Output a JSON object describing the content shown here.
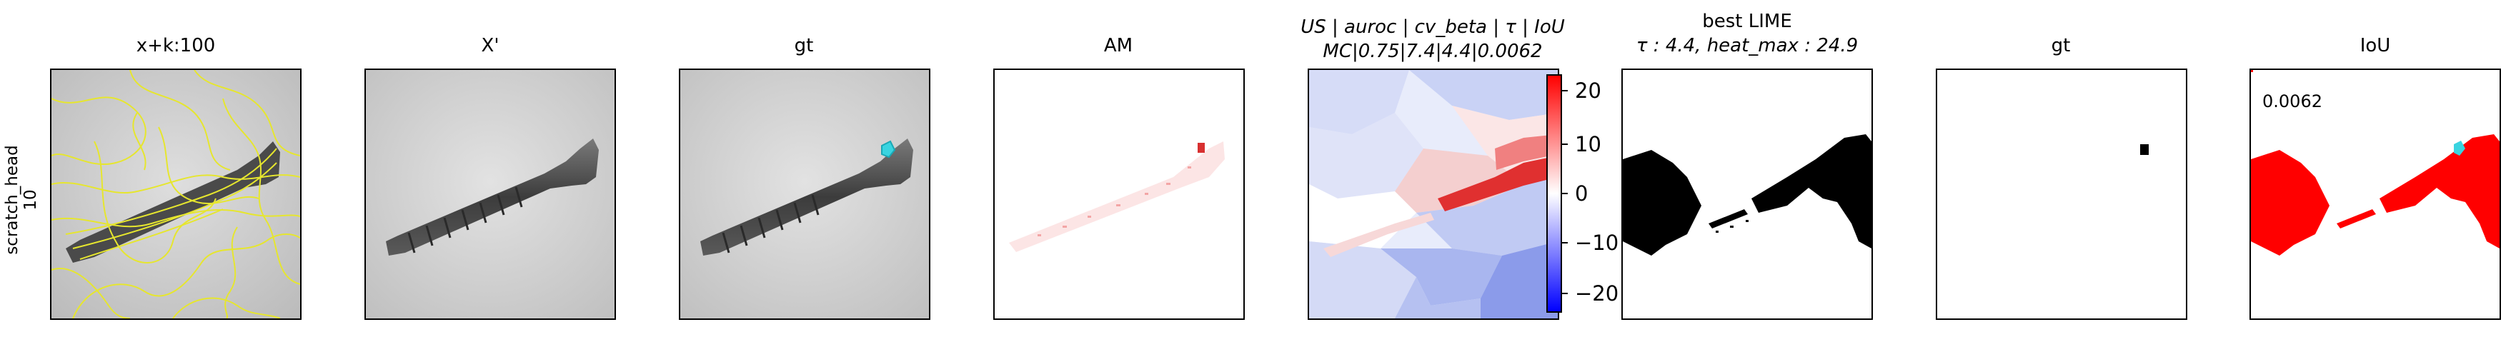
{
  "row_label": {
    "line1": "scratch_head",
    "line2": "10"
  },
  "panels": [
    {
      "title": "x+k:100"
    },
    {
      "title": "X'"
    },
    {
      "title": "gt"
    },
    {
      "title": "AM"
    },
    {
      "title_line1": "US | auroc | cv_beta | τ | IoU",
      "title_line2": "MC|0.75|7.4|4.4|0.0062"
    },
    {
      "title_line1": "best LIME",
      "title_line2": "τ : 4.4, heat_max : 24.9"
    },
    {
      "title": "gt"
    },
    {
      "title": "IoU"
    }
  ],
  "colorbar": {
    "ticks": [
      "20",
      "10",
      "0",
      "−10",
      "−20"
    ],
    "colors": {
      "max": "#ff0000",
      "mid": "#ffffff",
      "min": "#0000ff"
    }
  },
  "iou_value": "0.0062",
  "colors": {
    "superpixel": "#e6e62e",
    "gt_marker": "#39d4e0",
    "mask": "#ff0000"
  }
}
